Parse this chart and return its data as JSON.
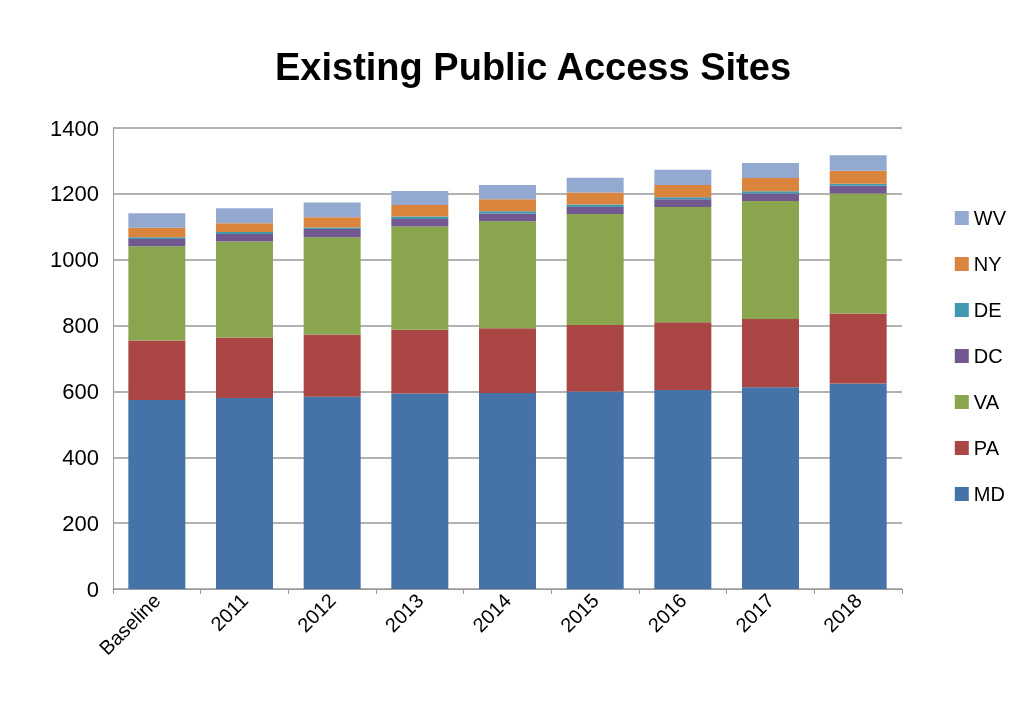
{
  "chart_data": {
    "type": "bar",
    "title": "Existing Public Access Sites",
    "stacked": true,
    "categories": [
      "Baseline",
      "2011",
      "2012",
      "2013",
      "2014",
      "2015",
      "2016",
      "2017",
      "2018"
    ],
    "series": [
      {
        "name": "MD",
        "color": "#4572a7",
        "values": [
          574,
          580,
          584,
          594,
          595,
          600,
          604,
          613,
          624
        ]
      },
      {
        "name": "PA",
        "color": "#aa4643",
        "values": [
          181,
          184,
          189,
          193,
          197,
          202,
          206,
          207,
          213
        ]
      },
      {
        "name": "VA",
        "color": "#89a54e",
        "values": [
          286,
          291,
          295,
          314,
          325,
          337,
          350,
          358,
          364
        ]
      },
      {
        "name": "DC",
        "color": "#71588f",
        "values": [
          22,
          23,
          25,
          23,
          23,
          21,
          24,
          23,
          24
        ]
      },
      {
        "name": "DE",
        "color": "#4198af",
        "values": [
          5,
          6,
          5,
          7,
          7,
          8,
          6,
          7,
          6
        ]
      },
      {
        "name": "NY",
        "color": "#db843d",
        "values": [
          29,
          27,
          31,
          35,
          37,
          36,
          37,
          40,
          39
        ]
      },
      {
        "name": "WV",
        "color": "#93a9cf",
        "values": [
          44,
          45,
          45,
          43,
          43,
          45,
          46,
          46,
          47
        ]
      }
    ],
    "ylim": [
      0,
      1400
    ],
    "yticks": [
      0,
      200,
      400,
      600,
      800,
      1000,
      1200,
      1400
    ],
    "grid": "y",
    "legend": "right"
  }
}
